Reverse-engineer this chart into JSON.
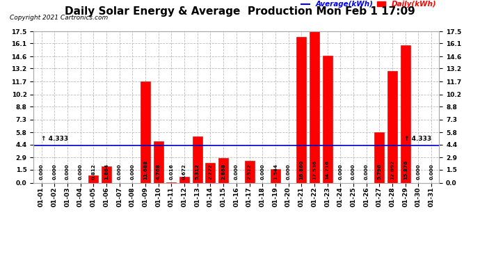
{
  "title": "Daily Solar Energy & Average  Production Mon Feb 1 17:09",
  "copyright": "Copyright 2021 Cartronics.com",
  "categories": [
    "01-01",
    "01-02",
    "01-03",
    "01-04",
    "01-05",
    "01-06",
    "01-07",
    "01-08",
    "01-09",
    "01-10",
    "01-11",
    "01-12",
    "01-13",
    "01-14",
    "01-15",
    "01-16",
    "01-17",
    "01-18",
    "01-19",
    "01-20",
    "01-21",
    "01-22",
    "01-23",
    "01-24",
    "01-25",
    "01-26",
    "01-27",
    "01-28",
    "01-29",
    "01-30",
    "01-31"
  ],
  "values": [
    0.0,
    0.0,
    0.0,
    0.0,
    0.812,
    1.864,
    0.0,
    0.0,
    11.688,
    4.768,
    0.016,
    0.672,
    5.312,
    2.272,
    2.868,
    0.0,
    2.512,
    0.0,
    1.544,
    0.0,
    16.86,
    17.536,
    14.716,
    0.0,
    0.0,
    0.0,
    5.796,
    12.892,
    15.876,
    0.0,
    0.0
  ],
  "average": 4.333,
  "bar_color": "#ff0000",
  "avg_line_color": "#0000cd",
  "avg_label_color": "#0000ff",
  "daily_label_color": "#ff0000",
  "yticks": [
    0.0,
    1.5,
    2.9,
    4.4,
    5.8,
    7.3,
    8.8,
    10.2,
    11.7,
    13.2,
    14.6,
    16.1,
    17.5
  ],
  "ymax": 17.5,
  "ymin": 0.0,
  "bg_color": "#ffffff",
  "grid_color": "#bbbbbb",
  "title_fontsize": 11,
  "tick_fontsize": 6.5,
  "val_fontsize": 5.2,
  "avg_annotation": "4.333"
}
